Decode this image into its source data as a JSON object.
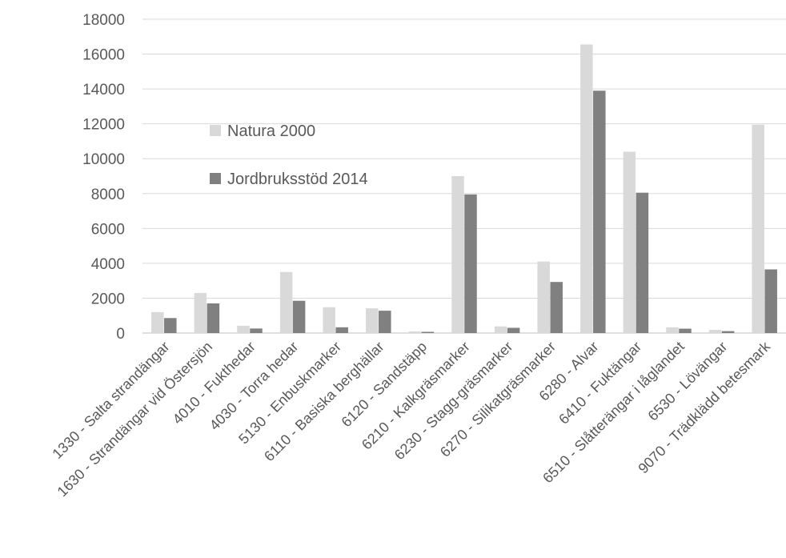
{
  "chart_data": {
    "type": "bar",
    "categories": [
      "1330 - Salta strandängar",
      "1630 - Strandängar vid Östersjön",
      "4010 - Fukthedar",
      "4030 - Torra hedar",
      "5130 - Enbuskmarker",
      "6110 - Basiska berghällar",
      "6120 - Sandstäpp",
      "6210 - Kalkgräsmarker",
      "6230 - Stagg-gräsmarker",
      "6270 - Silikatgräsmarker",
      "6280 - Alvar",
      "6410 - Fuktängar",
      "6510 - Slåtterängar i låglandet",
      "6530 - Lövängar",
      "9070 - Trädklädd betesmark"
    ],
    "series": [
      {
        "name": "Natura 2000",
        "color": "#d9d9d9",
        "values": [
          1200,
          2300,
          420,
          3500,
          1480,
          1420,
          90,
          9000,
          380,
          4100,
          16550,
          10400,
          330,
          180,
          11950
        ]
      },
      {
        "name": "Jordbruksstöd 2014",
        "color": "#808080",
        "values": [
          860,
          1700,
          260,
          1850,
          330,
          1280,
          70,
          7950,
          300,
          2930,
          13900,
          8050,
          250,
          110,
          3650
        ]
      }
    ],
    "yticks": [
      "0",
      "2000",
      "4000",
      "6000",
      "8000",
      "10000",
      "12000",
      "14000",
      "16000",
      "18000"
    ],
    "ylim": [
      0,
      18000
    ],
    "grid": true,
    "legend_position": "upper-left inside plot"
  }
}
